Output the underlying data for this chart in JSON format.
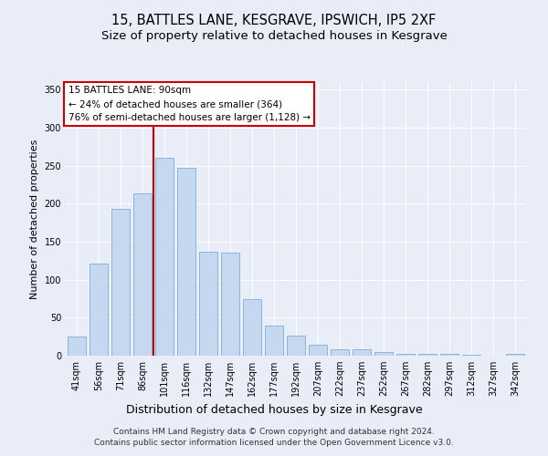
{
  "title": "15, BATTLES LANE, KESGRAVE, IPSWICH, IP5 2XF",
  "subtitle": "Size of property relative to detached houses in Kesgrave",
  "xlabel": "Distribution of detached houses by size in Kesgrave",
  "ylabel": "Number of detached properties",
  "categories": [
    "41sqm",
    "56sqm",
    "71sqm",
    "86sqm",
    "101sqm",
    "116sqm",
    "132sqm",
    "147sqm",
    "162sqm",
    "177sqm",
    "192sqm",
    "207sqm",
    "222sqm",
    "237sqm",
    "252sqm",
    "267sqm",
    "282sqm",
    "297sqm",
    "312sqm",
    "327sqm",
    "342sqm"
  ],
  "values": [
    25,
    121,
    193,
    214,
    260,
    247,
    137,
    136,
    75,
    40,
    26,
    15,
    9,
    8,
    5,
    3,
    2,
    2,
    1,
    0,
    2
  ],
  "bar_color": "#c5d8f0",
  "bar_edge_color": "#7aafd6",
  "vline_x_index": 3.5,
  "vline_color": "#cc0000",
  "annotation_title": "15 BATTLES LANE: 90sqm",
  "annotation_line2": "← 24% of detached houses are smaller (364)",
  "annotation_line3": "76% of semi-detached houses are larger (1,128) →",
  "annotation_box_color": "#cc0000",
  "ylim": [
    0,
    360
  ],
  "yticks": [
    0,
    50,
    100,
    150,
    200,
    250,
    300,
    350
  ],
  "bg_color": "#e8edf7",
  "plot_bg_color": "#e8edf7",
  "footer_line1": "Contains HM Land Registry data © Crown copyright and database right 2024.",
  "footer_line2": "Contains public sector information licensed under the Open Government Licence v3.0.",
  "title_fontsize": 10.5,
  "subtitle_fontsize": 9.5,
  "xlabel_fontsize": 9,
  "ylabel_fontsize": 8,
  "tick_fontsize": 7,
  "annotation_fontsize": 7.5,
  "footer_fontsize": 6.5
}
